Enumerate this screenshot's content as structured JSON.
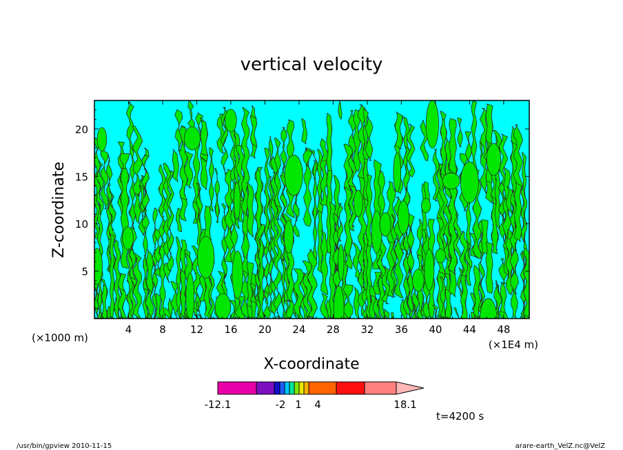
{
  "chart_data": {
    "type": "heatmap",
    "title": "vertical velocity",
    "xlabel": "X-coordinate",
    "ylabel": "Z-coordinate",
    "x_unit_left": "(×1000 m)",
    "x_unit_right": "(×1E4 m)",
    "x_ticks": [
      "4",
      "8",
      "12",
      "16",
      "20",
      "24",
      "28",
      "32",
      "36",
      "40",
      "44",
      "48"
    ],
    "x_tick_values": [
      4,
      8,
      12,
      16,
      20,
      24,
      28,
      32,
      36,
      40,
      44,
      48
    ],
    "xlim": [
      0,
      51
    ],
    "y_ticks": [
      "5",
      "10",
      "15",
      "20"
    ],
    "y_tick_values": [
      5,
      10,
      15,
      20
    ],
    "ylim": [
      0,
      23
    ],
    "dominant_fill_colors": [
      "#00ffff",
      "#00e600"
    ],
    "colorbar": {
      "colors": [
        "#e800a8",
        "#7a10c0",
        "#1010c8",
        "#1f5cff",
        "#00c8ff",
        "#00e8a0",
        "#80e800",
        "#e8e800",
        "#ffb400",
        "#ff6400",
        "#ff1010",
        "#ff8080",
        "#ffb8b8"
      ],
      "segment_widths": [
        56,
        26,
        8,
        7,
        7,
        7,
        7,
        7,
        7,
        40,
        41,
        46,
        40
      ],
      "tick_labels": [
        "-12.1",
        "-2",
        "1",
        "4",
        "18.1"
      ]
    },
    "time_label": "t=4200 s"
  },
  "footer": {
    "left": "/usr/bin/gpview   2010-11-15",
    "right": "arare-earth_VelZ.nc@VelZ"
  }
}
